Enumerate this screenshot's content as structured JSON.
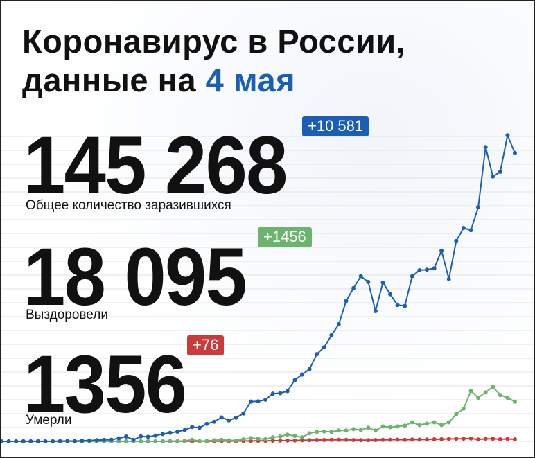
{
  "header": {
    "title_line1": "Коронавирус в России,",
    "title_line2_prefix": "данные на ",
    "title_line2_date": "4 мая"
  },
  "stats": {
    "cases": {
      "value": "145 268",
      "delta": "+10 581",
      "label": "Общее количество заразившихся"
    },
    "recovered": {
      "value": "18 095",
      "delta": "+1456",
      "label": "Выздоровели"
    },
    "deaths": {
      "value": "1356",
      "delta": "+76",
      "label": "Умерли"
    }
  },
  "colors": {
    "accent": "#1a5fb4",
    "cases": "#1a5fb4",
    "recovered": "#6ab46e",
    "deaths": "#cc3a3a",
    "grid": "#e2e2e2"
  },
  "chart_data": {
    "type": "line",
    "grid": true,
    "ylim": [
      0,
      12000
    ],
    "series": [
      {
        "key": "cases",
        "values": [
          0,
          0,
          0,
          2,
          2,
          3,
          0,
          3,
          11,
          14,
          10,
          25,
          30,
          45,
          54,
          62,
          115,
          177,
          57,
          182,
          167,
          212,
          270,
          316,
          355,
          418,
          526,
          498,
          644,
          720,
          880,
          770,
          870,
          1022,
          1460,
          1467,
          1528,
          1752,
          1767,
          1842,
          2250,
          2450,
          2650,
          3200,
          3450,
          3900,
          4300,
          5150,
          5620,
          6060,
          5850,
          4780,
          5830,
          5400,
          5000,
          4970,
          6060,
          6280,
          6300,
          6350,
          7000,
          5960,
          7350,
          7830,
          7750,
          8590,
          10800,
          9720,
          9890,
          11230,
          10580
        ]
      },
      {
        "key": "recovered",
        "values": [
          0,
          0,
          0,
          0,
          0,
          0,
          0,
          0,
          0,
          0,
          0,
          0,
          0,
          0,
          0,
          0,
          0,
          0,
          0,
          0,
          0,
          0,
          0,
          10,
          5,
          20,
          60,
          10,
          15,
          40,
          58,
          40,
          30,
          75,
          120,
          100,
          80,
          150,
          180,
          250,
          200,
          150,
          300,
          350,
          360,
          350,
          400,
          400,
          450,
          420,
          500,
          400,
          550,
          520,
          550,
          580,
          700,
          600,
          650,
          700,
          600,
          700,
          1000,
          1200,
          1850,
          1600,
          1800,
          2000,
          1700,
          1600,
          1456
        ]
      },
      {
        "key": "deaths",
        "values": [
          0,
          0,
          0,
          0,
          0,
          0,
          0,
          0,
          0,
          0,
          0,
          0,
          0,
          0,
          0,
          0,
          0,
          0,
          0,
          0,
          0,
          0,
          0,
          2,
          3,
          4,
          3,
          5,
          5,
          8,
          10,
          12,
          10,
          14,
          15,
          18,
          20,
          25,
          28,
          30,
          34,
          40,
          45,
          50,
          50,
          55,
          60,
          58,
          50,
          45,
          42,
          50,
          57,
          60,
          65,
          58,
          70,
          66,
          72,
          75,
          80,
          90,
          95,
          100,
          108,
          70,
          93,
          96,
          80,
          90,
          76
        ]
      }
    ]
  }
}
